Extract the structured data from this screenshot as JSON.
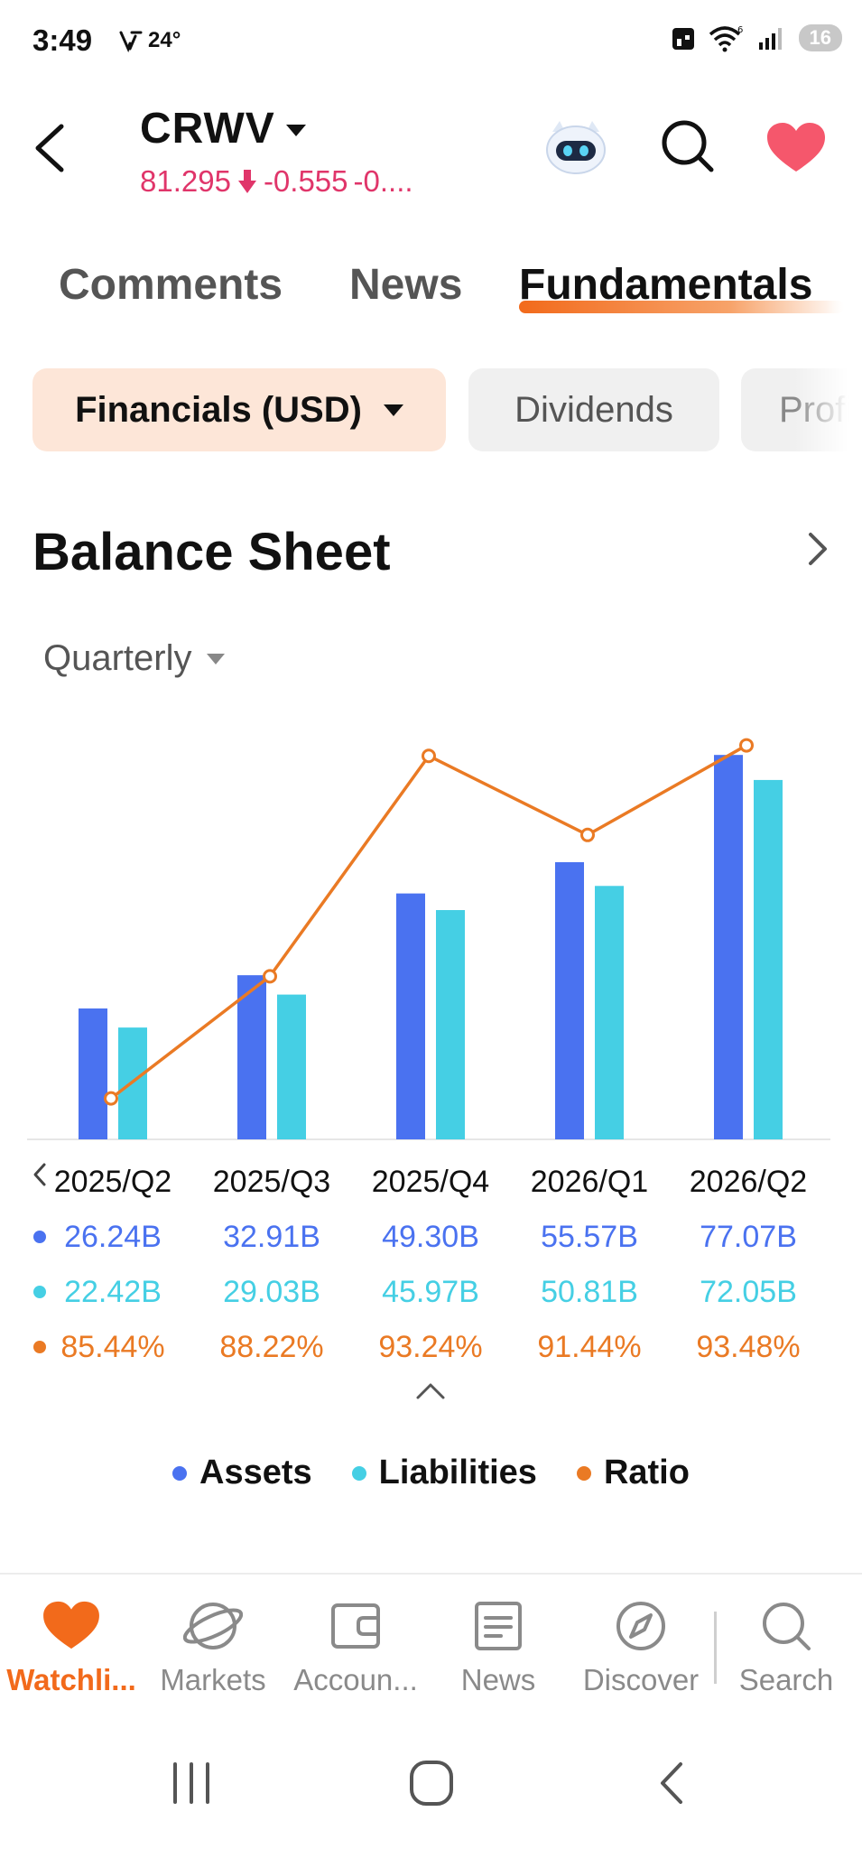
{
  "status_bar": {
    "time": "3:49",
    "weather": "24°",
    "battery": "16"
  },
  "header": {
    "ticker": "CRWV",
    "price": "81.295",
    "change": "-0.555",
    "change_pct": "-0...."
  },
  "tabs": [
    {
      "label": "Comments",
      "active": false
    },
    {
      "label": "News",
      "active": false
    },
    {
      "label": "Fundamentals",
      "active": true
    }
  ],
  "chips": {
    "financials": "Financials (USD)",
    "dividends": "Dividends",
    "profile": "Profi"
  },
  "section": {
    "title": "Balance Sheet",
    "period": "Quarterly"
  },
  "colors": {
    "assets": "#4a72f0",
    "liabilities": "#45cfe4",
    "ratio": "#ea7a24",
    "accent": "#f26a1b",
    "down": "#e0356a"
  },
  "table": {
    "periods": [
      "2025/Q2",
      "2025/Q3",
      "2025/Q4",
      "2026/Q1",
      "2026/Q2"
    ],
    "assets": [
      "26.24B",
      "32.91B",
      "49.30B",
      "55.57B",
      "77.07B"
    ],
    "liabilities": [
      "22.42B",
      "29.03B",
      "45.97B",
      "50.81B",
      "72.05B"
    ],
    "ratio": [
      "85.44%",
      "88.22%",
      "93.24%",
      "91.44%",
      "93.48%"
    ]
  },
  "chart_data": {
    "type": "bar",
    "categories": [
      "2025/Q2",
      "2025/Q3",
      "2025/Q4",
      "2026/Q1",
      "2026/Q2"
    ],
    "series": [
      {
        "name": "Assets",
        "kind": "bar",
        "values": [
          26.24,
          32.91,
          49.3,
          55.57,
          77.07
        ]
      },
      {
        "name": "Liabilities",
        "kind": "bar",
        "values": [
          22.42,
          29.03,
          45.97,
          50.81,
          72.05
        ]
      },
      {
        "name": "Ratio",
        "kind": "line",
        "values": [
          85.44,
          88.22,
          93.24,
          91.44,
          93.48
        ]
      }
    ],
    "value_unit": "B",
    "ratio_unit": "%",
    "ylim": [
      0,
      80
    ],
    "ratio_ylim": [
      85.0,
      93.8
    ],
    "grid": false,
    "legend": "bottom"
  },
  "legend": [
    "Assets",
    "Liabilities",
    "Ratio"
  ],
  "bottom_nav": [
    {
      "label": "Watchli...",
      "icon": "heart-icon",
      "active": true
    },
    {
      "label": "Markets",
      "icon": "planet-icon",
      "active": false
    },
    {
      "label": "Accoun...",
      "icon": "wallet-icon",
      "active": false
    },
    {
      "label": "News",
      "icon": "news-icon",
      "active": false
    },
    {
      "label": "Discover",
      "icon": "compass-icon",
      "active": false
    },
    {
      "label": "Search",
      "icon": "search-icon",
      "active": false
    }
  ]
}
